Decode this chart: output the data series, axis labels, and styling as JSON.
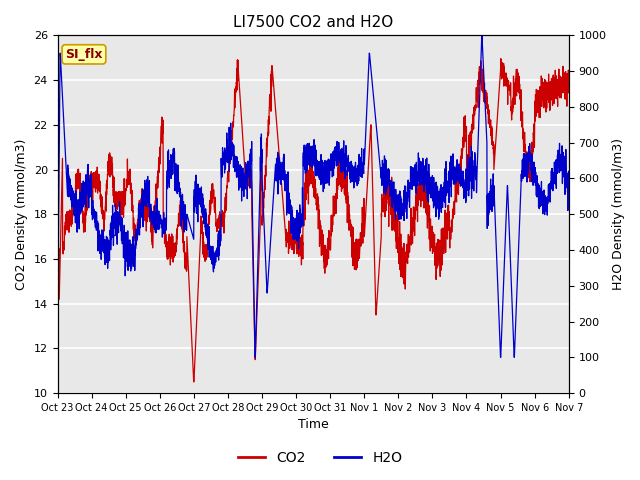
{
  "title": "LI7500 CO2 and H2O",
  "xlabel": "Time",
  "ylabel_left": "CO2 Density (mmol/m3)",
  "ylabel_right": "H2O Density (mmol/m3)",
  "ylim_left": [
    10,
    26
  ],
  "ylim_right": [
    0,
    1000
  ],
  "yticks_left": [
    10,
    12,
    14,
    16,
    18,
    20,
    22,
    24,
    26
  ],
  "yticks_right": [
    0,
    100,
    200,
    300,
    400,
    500,
    600,
    700,
    800,
    900,
    1000
  ],
  "xtick_labels": [
    "Oct 23",
    "Oct 24",
    "Oct 25",
    "Oct 26",
    "Oct 27",
    "Oct 28",
    "Oct 29",
    "Oct 30",
    "Oct 31",
    "Nov 1",
    "Nov 2",
    "Nov 3",
    "Nov 4",
    "Nov 5",
    "Nov 6",
    "Nov 7"
  ],
  "co2_color": "#cc0000",
  "h2o_color": "#0000cc",
  "annotation_text": "SI_flx",
  "plot_bg_color": "#e8e8e8",
  "legend_co2": "CO2",
  "legend_h2o": "H2O",
  "title_fontsize": 11,
  "axis_label_fontsize": 9,
  "tick_fontsize": 8,
  "linewidth": 0.9
}
